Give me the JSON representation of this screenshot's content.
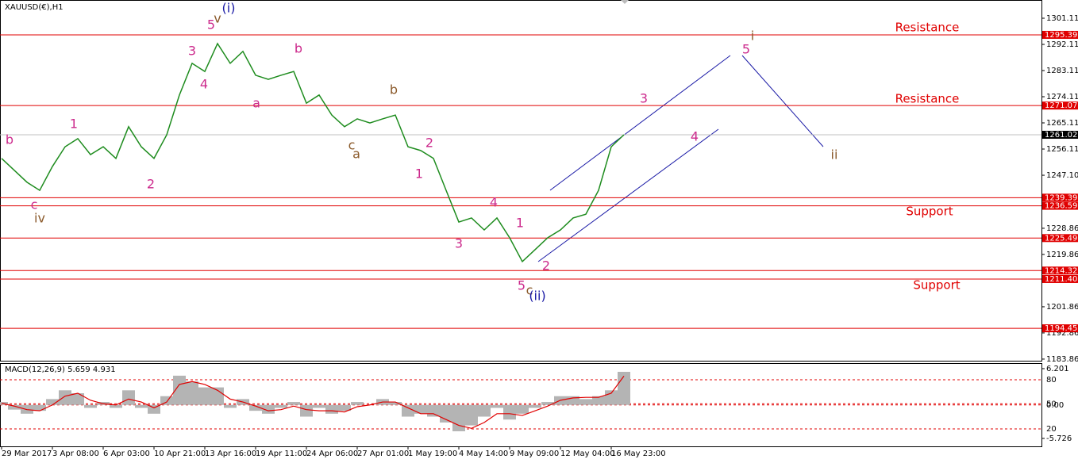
{
  "chart_data": {
    "type": "line",
    "title": "XAUUSD(€),H1",
    "categories": [
      "29 Mar 2017",
      null,
      null,
      null,
      "3 Apr 08:00",
      null,
      null,
      null,
      "6 Apr 03:00",
      null,
      null,
      null,
      "10 Apr 21:00",
      null,
      null,
      null,
      "13 Apr 16:00",
      null,
      null,
      null,
      "19 Apr 11:00",
      null,
      null,
      null,
      "24 Apr 06:00",
      null,
      null,
      null,
      "27 Apr 01:00",
      null,
      null,
      null,
      "1 May 19:00",
      null,
      null,
      null,
      "4 May 14:00",
      null,
      null,
      null,
      "9 May 09:00",
      null,
      null,
      null,
      "12 May 04:00",
      null,
      null,
      null,
      "16 May 23:00",
      null
    ],
    "series": [
      {
        "color": "#1e8c1e",
        "values": [
          1252.9,
          1248.8,
          1244.7,
          1241.9,
          1250.1,
          1256.9,
          1259.7,
          1254.2,
          1256.9,
          1252.9,
          1263.8,
          1256.9,
          1252.9,
          1261.0,
          1274.7,
          1285.6,
          1282.8,
          1292.4,
          1285.6,
          1289.7,
          1281.5,
          1280.1,
          1281.5,
          1282.8,
          1271.9,
          1274.7,
          1267.8,
          1263.8,
          1266.5,
          1265.1,
          1266.5,
          1267.8,
          1256.9,
          1255.6,
          1252.9,
          1241.9,
          1231.0,
          1232.4,
          1228.3,
          1232.4,
          1225.6,
          1217.4,
          1221.5,
          1225.6,
          1228.3,
          1232.4,
          1233.7,
          1241.9,
          1256.9,
          1261.02
        ]
      }
    ],
    "ylim": [
      1183.3,
      1307.38
    ],
    "yticks": [
      1301.11,
      1292.11,
      1283.11,
      1274.11,
      1265.11,
      1256.11,
      {
        "value": 1247.1,
        "label": "1247.10"
      },
      1228.86,
      1219.86,
      1201.86,
      1192.86,
      1183.86
    ],
    "levels": [
      1295.39,
      1271.07,
      1239.39,
      1236.59,
      1225.49,
      1214.32,
      {
        "value": 1211.4,
        "label": "1211.40"
      },
      1194.45
    ],
    "levels_color": "#e00000",
    "current_price": 1261.02,
    "annotations": [
      {
        "text": "Resistance",
        "color": "#e00000"
      },
      {
        "text": "Resistance",
        "color": "#e00000"
      },
      {
        "text": "Support",
        "color": "#e00000"
      },
      {
        "text": "Support",
        "color": "#e00000"
      },
      {
        "text": "(i)",
        "color": "#1a1aa6"
      },
      {
        "text": "5",
        "color": "#cc2a8c"
      },
      {
        "text": "v",
        "color": "#8b5a2b"
      },
      {
        "text": "3",
        "color": "#cc2a8c"
      },
      {
        "text": "4",
        "color": "#cc2a8c"
      },
      {
        "text": "a",
        "color": "#cc2a8c"
      },
      {
        "text": "b",
        "color": "#cc2a8c"
      },
      {
        "text": "b",
        "color": "#8b5a2b"
      },
      {
        "text": "c",
        "color": "#8b5a2b"
      },
      {
        "text": "a",
        "color": "#8b5a2b"
      },
      {
        "text": "2",
        "color": "#cc2a8c"
      },
      {
        "text": "1",
        "color": "#cc2a8c"
      },
      {
        "text": "4",
        "color": "#cc2a8c"
      },
      {
        "text": "3",
        "color": "#cc2a8c"
      },
      {
        "text": "1",
        "color": "#cc2a8c"
      },
      {
        "text": "2",
        "color": "#cc2a8c"
      },
      {
        "text": "5",
        "color": "#cc2a8c"
      },
      {
        "text": "c",
        "color": "#8b5a2b"
      },
      {
        "text": "(ii)",
        "color": "#1a1aa6"
      },
      {
        "text": "3",
        "color": "#cc2a8c"
      },
      {
        "text": "4",
        "color": "#cc2a8c"
      },
      {
        "text": "5",
        "color": "#cc2a8c"
      },
      {
        "text": "i",
        "color": "#8b5a2b"
      },
      {
        "text": "ii",
        "color": "#8b5a2b"
      },
      {
        "text": "b",
        "color": "#cc2a8c"
      },
      {
        "text": "1",
        "color": "#cc2a8c"
      },
      {
        "text": "2",
        "color": "#cc2a8c"
      },
      {
        "text": "c",
        "color": "#cc2a8c"
      },
      {
        "text": "iv",
        "color": "#8b5a2b"
      }
    ],
    "macd": {
      "title": "MACD(12,26,9) 5.659 4.931",
      "ylim": [
        -7.08,
        7.15
      ],
      "yticks": [
        6.201,
        {
          "value": 4.3,
          "label": "80"
        },
        {
          "value": 0.2,
          "label": "50"
        },
        {
          "value": 0,
          "label": "0.00"
        },
        {
          "value": -4.1,
          "label": "20"
        },
        -5.726
      ],
      "series": [
        {
          "color": "#b4b4b4",
          "values": [
            0.5,
            -0.8,
            -1.5,
            -1.0,
            1.0,
            2.5,
            2.0,
            -0.5,
            0.5,
            -0.5,
            2.5,
            -0.5,
            -1.5,
            1.5,
            5.0,
            4.0,
            3.0,
            3.0,
            -0.5,
            1.0,
            -1.0,
            -1.5,
            -0.5,
            0.5,
            -2.0,
            -0.5,
            -1.5,
            -1.0,
            0.5,
            0.0,
            1.0,
            0.5,
            -2.0,
            -1.5,
            -2.0,
            -3.0,
            -4.5,
            -3.5,
            -2.0,
            -0.5,
            -2.5,
            -1.5,
            -0.5,
            0.5,
            1.5,
            1.5,
            1.0,
            1.5,
            2.5,
            5.659
          ]
        },
        {
          "color": "#e00000",
          "values": [
            0.3,
            -0.2,
            -0.8,
            -1.0,
            0.0,
            1.5,
            2.0,
            0.8,
            0.2,
            0.0,
            1.0,
            0.5,
            -0.5,
            0.5,
            3.5,
            4.0,
            3.5,
            2.5,
            1.0,
            0.5,
            -0.2,
            -1.0,
            -0.8,
            -0.2,
            -0.8,
            -1.0,
            -1.0,
            -1.2,
            -0.3,
            0.0,
            0.5,
            0.5,
            -0.5,
            -1.5,
            -1.5,
            -2.5,
            -3.5,
            -4.0,
            -3.0,
            -1.5,
            -1.5,
            -1.8,
            -1.0,
            -0.2,
            0.8,
            1.2,
            1.3,
            1.3,
            2.0,
            4.931
          ]
        }
      ]
    }
  }
}
